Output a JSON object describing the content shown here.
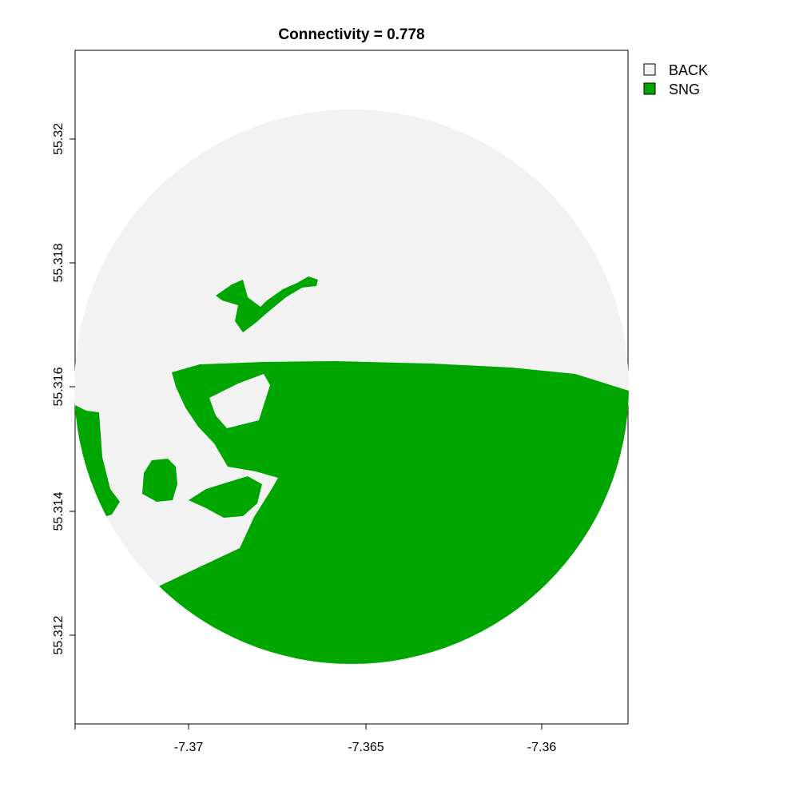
{
  "title": "Connectivity = 0.778",
  "legend": [
    {
      "label": "BACK",
      "color": "#f2f2f2"
    },
    {
      "label": "SNG",
      "color": "#00a600"
    }
  ],
  "x_axis": {
    "ticks": [
      "-7.37",
      "-7.365",
      "-7.36"
    ]
  },
  "y_axis": {
    "ticks": [
      "55.312",
      "55.314",
      "55.316",
      "55.318",
      "55.32"
    ]
  },
  "colors": {
    "background_class": "#f2f2f2",
    "sng_class": "#00a600",
    "frame": "#000000"
  }
}
